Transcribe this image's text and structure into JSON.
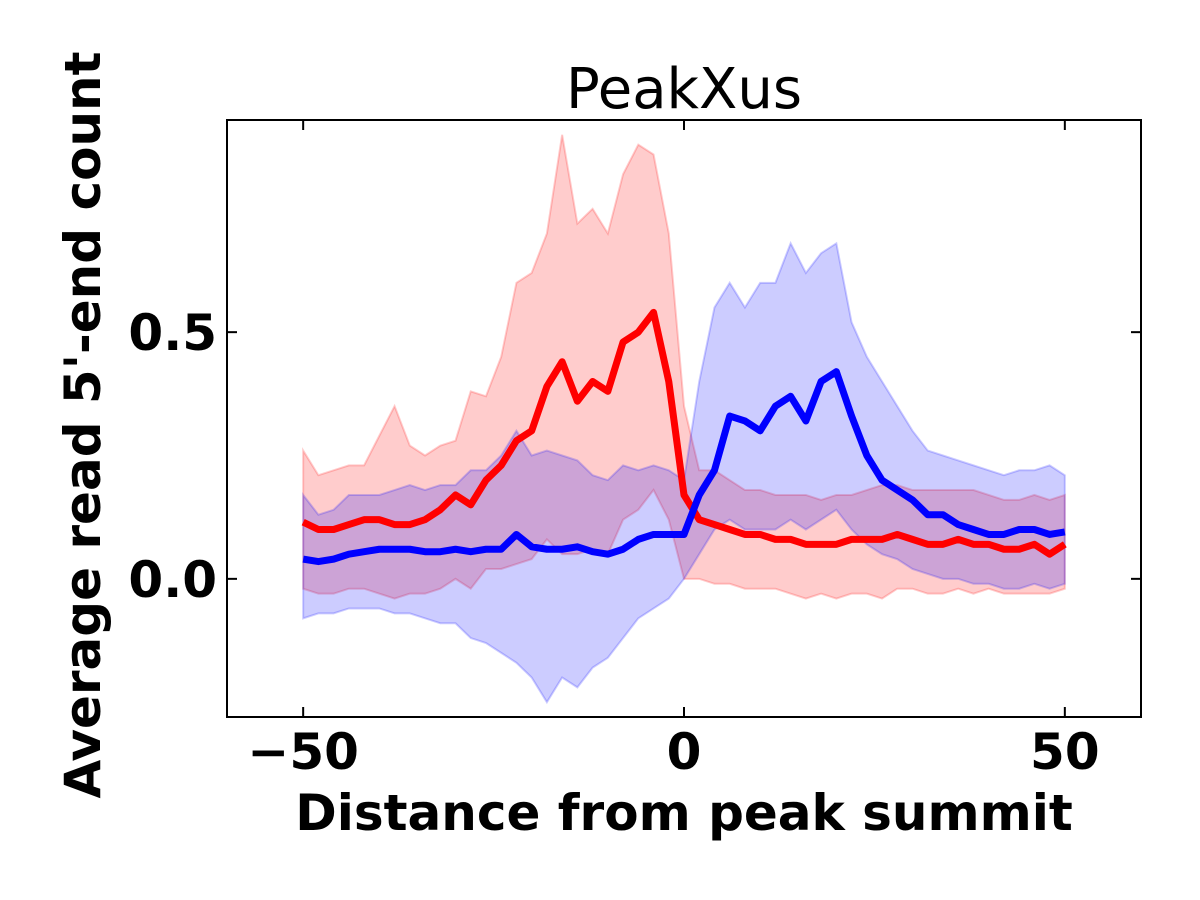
{
  "chart_data": {
    "type": "line",
    "title": "PeakXus",
    "xlabel": "Distance from peak summit",
    "ylabel": "Average read 5'-end count",
    "x": [
      -50,
      -48,
      -46,
      -44,
      -42,
      -40,
      -38,
      -36,
      -34,
      -32,
      -30,
      -28,
      -26,
      -24,
      -22,
      -20,
      -18,
      -16,
      -14,
      -12,
      -10,
      -8,
      -6,
      -4,
      -2,
      0,
      2,
      4,
      6,
      8,
      10,
      12,
      14,
      16,
      18,
      20,
      22,
      24,
      26,
      28,
      30,
      32,
      34,
      36,
      38,
      40,
      42,
      44,
      46,
      48,
      50
    ],
    "series": [
      {
        "color": "#ff0000",
        "values": [
          0.115,
          0.1,
          0.1,
          0.11,
          0.12,
          0.12,
          0.11,
          0.11,
          0.12,
          0.14,
          0.17,
          0.15,
          0.2,
          0.23,
          0.28,
          0.3,
          0.39,
          0.44,
          0.36,
          0.4,
          0.38,
          0.48,
          0.5,
          0.54,
          0.4,
          0.17,
          0.12,
          0.11,
          0.1,
          0.09,
          0.09,
          0.08,
          0.08,
          0.07,
          0.07,
          0.07,
          0.08,
          0.08,
          0.08,
          0.09,
          0.08,
          0.07,
          0.07,
          0.08,
          0.07,
          0.07,
          0.06,
          0.06,
          0.07,
          0.05,
          0.07
        ],
        "upper": [
          0.26,
          0.21,
          0.22,
          0.23,
          0.23,
          0.29,
          0.35,
          0.27,
          0.25,
          0.27,
          0.28,
          0.38,
          0.37,
          0.45,
          0.6,
          0.62,
          0.7,
          0.9,
          0.72,
          0.75,
          0.7,
          0.82,
          0.88,
          0.86,
          0.7,
          0.35,
          0.22,
          0.22,
          0.2,
          0.18,
          0.18,
          0.17,
          0.17,
          0.17,
          0.16,
          0.17,
          0.17,
          0.18,
          0.19,
          0.19,
          0.18,
          0.18,
          0.18,
          0.18,
          0.18,
          0.17,
          0.16,
          0.16,
          0.17,
          0.16,
          0.17
        ],
        "lower": [
          -0.02,
          -0.03,
          -0.03,
          -0.02,
          -0.02,
          -0.03,
          -0.04,
          -0.03,
          -0.03,
          -0.02,
          0.0,
          -0.02,
          0.02,
          0.02,
          0.03,
          0.04,
          0.08,
          0.05,
          0.05,
          0.06,
          0.05,
          0.12,
          0.14,
          0.18,
          0.12,
          0.0,
          0.0,
          -0.01,
          -0.01,
          -0.02,
          -0.02,
          -0.02,
          -0.03,
          -0.04,
          -0.03,
          -0.04,
          -0.03,
          -0.03,
          -0.04,
          -0.02,
          -0.02,
          -0.03,
          -0.03,
          -0.02,
          -0.03,
          -0.02,
          -0.03,
          -0.03,
          -0.03,
          -0.03,
          -0.02
        ]
      },
      {
        "color": "#0000ff",
        "values": [
          0.04,
          0.035,
          0.04,
          0.05,
          0.055,
          0.06,
          0.06,
          0.06,
          0.055,
          0.055,
          0.06,
          0.055,
          0.06,
          0.06,
          0.09,
          0.065,
          0.06,
          0.06,
          0.065,
          0.055,
          0.05,
          0.06,
          0.08,
          0.09,
          0.09,
          0.09,
          0.17,
          0.22,
          0.33,
          0.32,
          0.3,
          0.35,
          0.37,
          0.32,
          0.4,
          0.42,
          0.33,
          0.25,
          0.2,
          0.18,
          0.16,
          0.13,
          0.13,
          0.11,
          0.1,
          0.09,
          0.09,
          0.1,
          0.1,
          0.09,
          0.095
        ],
        "upper": [
          0.17,
          0.13,
          0.14,
          0.17,
          0.17,
          0.17,
          0.18,
          0.19,
          0.18,
          0.19,
          0.19,
          0.22,
          0.22,
          0.25,
          0.3,
          0.25,
          0.26,
          0.25,
          0.24,
          0.21,
          0.2,
          0.23,
          0.22,
          0.23,
          0.22,
          0.2,
          0.4,
          0.55,
          0.6,
          0.55,
          0.6,
          0.6,
          0.68,
          0.62,
          0.66,
          0.68,
          0.52,
          0.45,
          0.4,
          0.35,
          0.3,
          0.26,
          0.25,
          0.24,
          0.23,
          0.22,
          0.21,
          0.22,
          0.22,
          0.23,
          0.21
        ],
        "lower": [
          -0.08,
          -0.07,
          -0.07,
          -0.06,
          -0.06,
          -0.06,
          -0.07,
          -0.07,
          -0.08,
          -0.09,
          -0.09,
          -0.12,
          -0.13,
          -0.15,
          -0.17,
          -0.2,
          -0.25,
          -0.2,
          -0.22,
          -0.18,
          -0.16,
          -0.12,
          -0.08,
          -0.06,
          -0.04,
          0.0,
          0.05,
          0.1,
          0.12,
          0.1,
          0.1,
          0.1,
          0.12,
          0.1,
          0.12,
          0.14,
          0.1,
          0.07,
          0.05,
          0.04,
          0.02,
          0.01,
          0.0,
          0.0,
          -0.01,
          -0.01,
          -0.02,
          -0.02,
          -0.01,
          -0.02,
          -0.01
        ]
      }
    ],
    "xlim": [
      -60,
      60
    ],
    "ylim": [
      -0.28,
      0.93
    ],
    "xticks": [
      {
        "value": -50,
        "label": "−50"
      },
      0,
      50
    ],
    "yticks": [
      {
        "value": 0,
        "label": "0.0"
      },
      {
        "value": 0.5,
        "label": "0.5"
      }
    ]
  }
}
